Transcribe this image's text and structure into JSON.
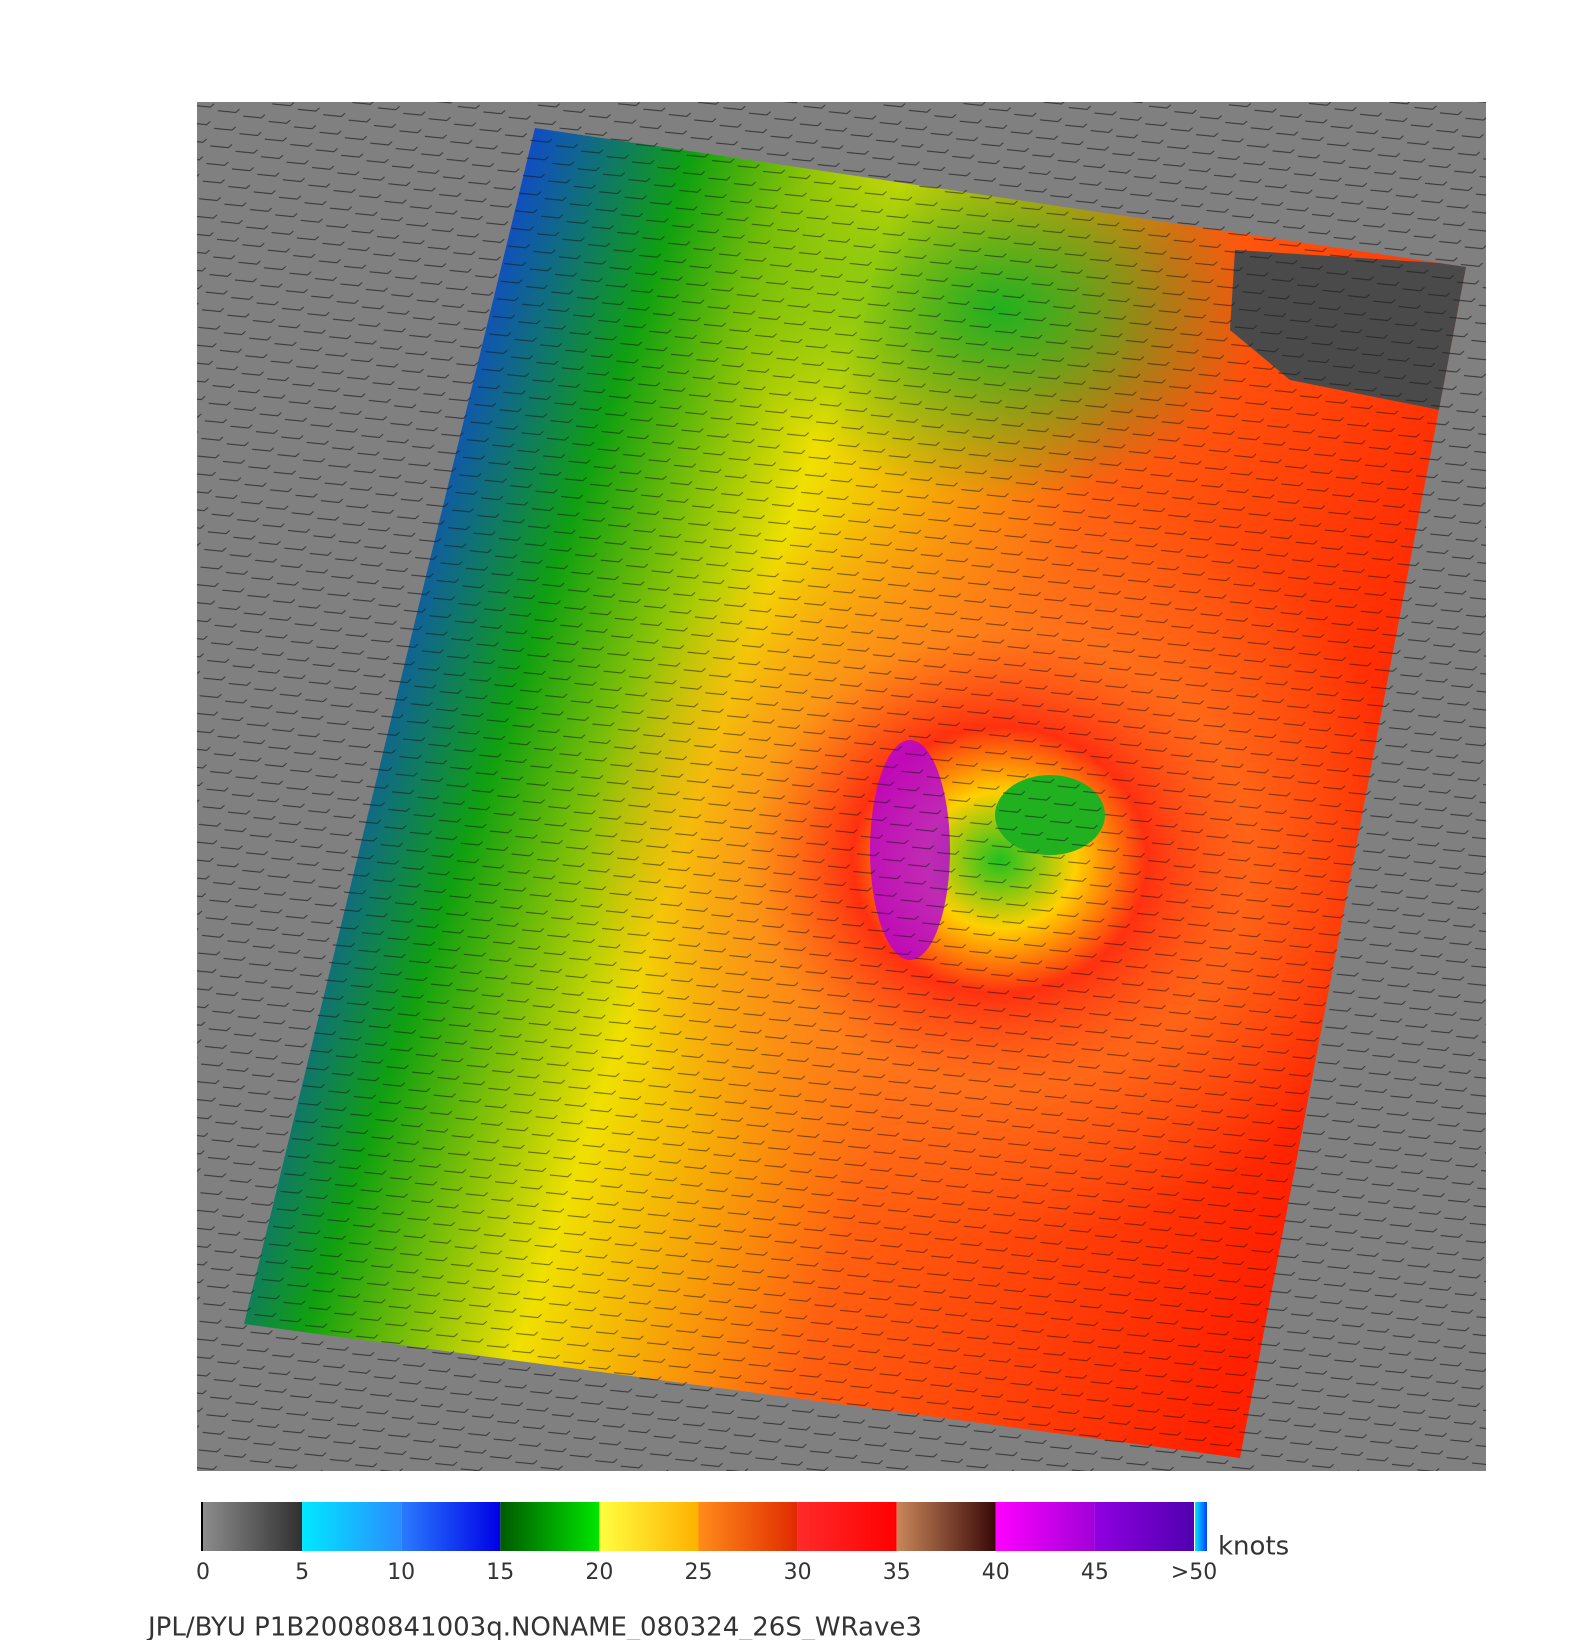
{
  "colorbar": {
    "range": [
      0,
      50
    ],
    "unit": "knots",
    "ticks": [
      0,
      5,
      10,
      15,
      20,
      25,
      30,
      35,
      40,
      45,
      {
        "value": 50,
        "label": ">50"
      }
    ],
    "colors": [
      [
        "#8c8c8c",
        "#303030"
      ],
      [
        "#00e8ff",
        "#2a8cff"
      ],
      [
        "#2a7cff",
        "#0000e6"
      ],
      [
        "#005a00",
        "#00e600"
      ],
      [
        "#ffff40",
        "#ffb000"
      ],
      [
        "#ff8c1a",
        "#e02a00"
      ],
      [
        "#ff2a2a",
        "#ff0000"
      ],
      [
        "#c8865a",
        "#3a0808"
      ],
      [
        "#ff00ff",
        "#a000d8"
      ],
      [
        "#9000e0",
        "#5000b0"
      ]
    ]
  },
  "caption": "JPL/BYU  P1B20080841003q.NONAME_080324_26S_WRave3"
}
